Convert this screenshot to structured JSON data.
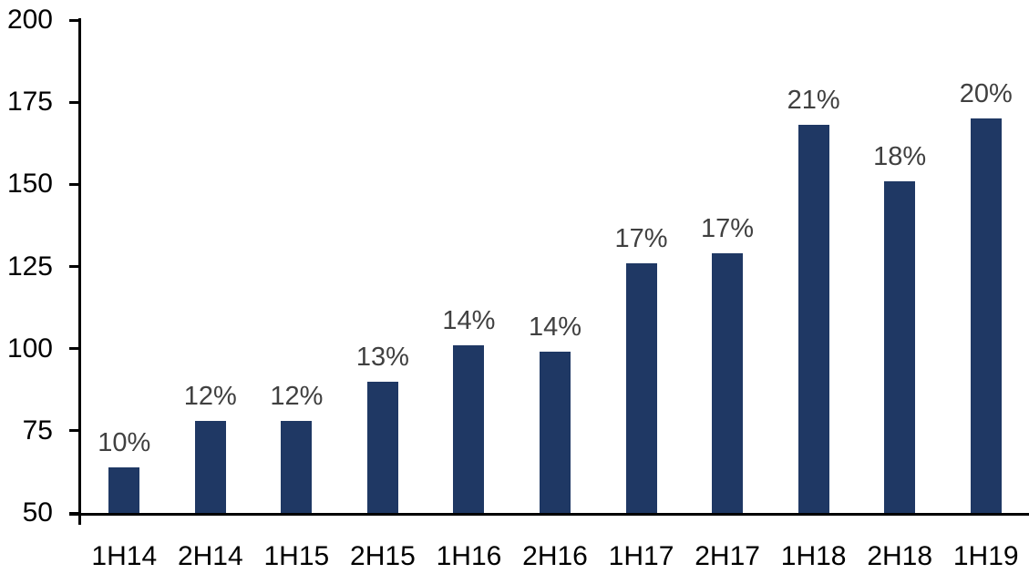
{
  "chart_data": {
    "type": "bar",
    "title": "",
    "xlabel": "",
    "ylabel": "",
    "categories": [
      "1H14",
      "2H14",
      "1H15",
      "2H15",
      "1H16",
      "2H16",
      "1H17",
      "2H17",
      "1H18",
      "2H18",
      "1H19"
    ],
    "values": [
      64,
      78,
      78,
      90,
      101,
      99,
      126,
      129,
      168,
      151,
      170
    ],
    "data_labels": [
      "10%",
      "12%",
      "12%",
      "13%",
      "14%",
      "14%",
      "17%",
      "17%",
      "21%",
      "18%",
      "20%"
    ],
    "ylim": [
      50,
      200
    ],
    "yticks": [
      "50",
      "75",
      "100",
      "125",
      "150",
      "175",
      "200"
    ],
    "ytick_values": [
      50,
      75,
      100,
      125,
      150,
      175,
      200
    ],
    "grid": false,
    "legend": false,
    "colors": {
      "bar": "#1F3864",
      "data_label": "#404040",
      "axis": "#000000",
      "tick_label": "#000000",
      "background": "#ffffff"
    }
  }
}
